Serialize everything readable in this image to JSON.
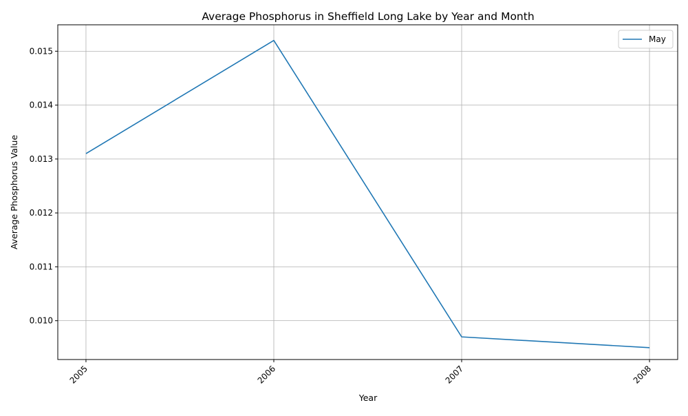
{
  "chart_data": {
    "type": "line",
    "title": "Average Phosphorus in Sheffield Long Lake by Year and Month",
    "xlabel": "Year",
    "ylabel": "Average Phosphorus Value",
    "x": [
      2005,
      2006,
      2007,
      2008
    ],
    "x_tick_labels": [
      "2005",
      "2006",
      "2007",
      "2008"
    ],
    "y_ticks": [
      0.01,
      0.011,
      0.012,
      0.013,
      0.014,
      0.015
    ],
    "y_tick_labels": [
      "0.010",
      "0.011",
      "0.012",
      "0.013",
      "0.014",
      "0.015"
    ],
    "xlim": [
      2004.85,
      2008.15
    ],
    "ylim": [
      0.00928,
      0.01549
    ],
    "grid": true,
    "legend_position": "top-right",
    "series": [
      {
        "name": "May",
        "color": "#1f77b4",
        "values": [
          0.0131,
          0.0152,
          0.0097,
          0.0095
        ]
      }
    ]
  }
}
